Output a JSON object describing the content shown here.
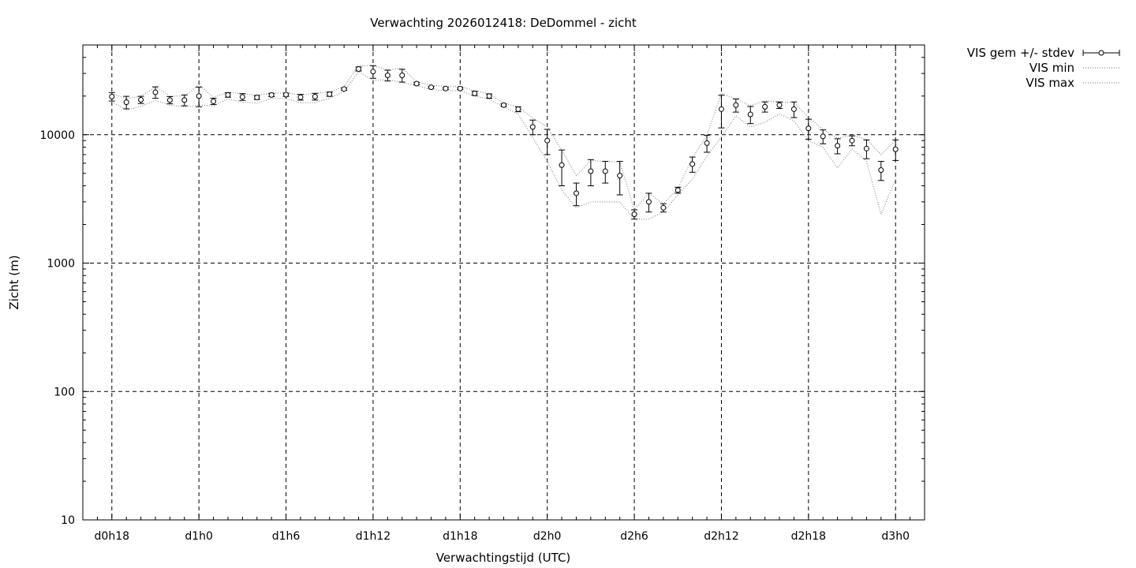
{
  "chart_data": {
    "type": "scatter",
    "title": "Verwachting 2026012418: DeDommel - zicht",
    "xlabel": "Verwachtingstijd (UTC)",
    "ylabel": "Zicht (m)",
    "yscale": "log",
    "ylim": [
      10,
      50000
    ],
    "xlim_hours": [
      16,
      74
    ],
    "grid": true,
    "legend_position": "outside-top-right",
    "x_ticks": [
      {
        "hour": 18,
        "label": "d0h18"
      },
      {
        "hour": 24,
        "label": "d1h0"
      },
      {
        "hour": 30,
        "label": "d1h6"
      },
      {
        "hour": 36,
        "label": "d1h12"
      },
      {
        "hour": 42,
        "label": "d1h18"
      },
      {
        "hour": 48,
        "label": "d2h0"
      },
      {
        "hour": 54,
        "label": "d2h6"
      },
      {
        "hour": 60,
        "label": "d2h12"
      },
      {
        "hour": 66,
        "label": "d2h18"
      },
      {
        "hour": 72,
        "label": "d3h0"
      }
    ],
    "y_ticks": [
      {
        "value": 10,
        "label": "10"
      },
      {
        "value": 100,
        "label": "100"
      },
      {
        "value": 1000,
        "label": "1000"
      },
      {
        "value": 10000,
        "label": "10000"
      }
    ],
    "x_hours": [
      18,
      19,
      20,
      21,
      22,
      23,
      24,
      25,
      26,
      27,
      28,
      29,
      30,
      31,
      32,
      33,
      34,
      35,
      36,
      37,
      38,
      39,
      40,
      41,
      42,
      43,
      44,
      45,
      46,
      47,
      48,
      49,
      50,
      51,
      52,
      53,
      54,
      55,
      56,
      57,
      58,
      59,
      60,
      61,
      62,
      63,
      64,
      65,
      66,
      67,
      68,
      69,
      70,
      71,
      72
    ],
    "series": [
      {
        "name": "VIS gem +/- stdev",
        "style": "errorbars",
        "mean": [
          19800,
          17900,
          18700,
          21400,
          18600,
          18600,
          20000,
          18200,
          20400,
          19700,
          19500,
          20400,
          20500,
          19600,
          19800,
          20700,
          22700,
          32500,
          31000,
          29000,
          29000,
          25000,
          23400,
          22900,
          22900,
          21000,
          20000,
          17000,
          15800,
          11500,
          9000,
          5800,
          3500,
          5200,
          5200,
          4800,
          2400,
          3000,
          2700,
          3700,
          5900,
          8600,
          15800,
          17000,
          14400,
          16500,
          17000,
          15800,
          11200,
          9700,
          8200,
          9000,
          7800,
          5300,
          7700
        ],
        "stdev": [
          1500,
          2000,
          1200,
          2200,
          1200,
          1800,
          3500,
          1000,
          800,
          1200,
          700,
          600,
          600,
          1000,
          1200,
          800,
          500,
          1200,
          3500,
          2800,
          3300,
          600,
          400,
          400,
          400,
          800,
          800,
          400,
          700,
          1500,
          2000,
          1800,
          700,
          1200,
          1000,
          1400,
          200,
          500,
          200,
          200,
          800,
          1300,
          4500,
          2000,
          2200,
          1500,
          1000,
          2200,
          2000,
          1200,
          1100,
          800,
          1300,
          900,
          1400
        ]
      },
      {
        "name": "VIS min",
        "style": "dotted",
        "values": [
          18000,
          15600,
          16600,
          18500,
          17000,
          16500,
          17000,
          16800,
          19000,
          18000,
          17600,
          19200,
          19200,
          17700,
          17800,
          19200,
          21700,
          31000,
          26500,
          26800,
          25500,
          24200,
          22500,
          22000,
          22000,
          20000,
          19000,
          16400,
          14500,
          9500,
          6200,
          3700,
          2700,
          3000,
          3000,
          3000,
          2200,
          2200,
          2500,
          3400,
          4500,
          6800,
          9600,
          14000,
          11500,
          12500,
          14500,
          12800,
          9000,
          8000,
          5500,
          7800,
          6200,
          2400,
          4500
        ]
      },
      {
        "name": "VIS max",
        "style": "dotted",
        "values": [
          21000,
          19000,
          20000,
          23500,
          20000,
          20000,
          24500,
          19500,
          21500,
          20800,
          20300,
          21000,
          21200,
          20400,
          21000,
          21500,
          23600,
          34500,
          34500,
          32000,
          33000,
          25800,
          24300,
          23800,
          23800,
          22000,
          20800,
          17600,
          16500,
          13500,
          11500,
          7600,
          4800,
          6300,
          6200,
          6100,
          2600,
          3500,
          2900,
          3800,
          6600,
          9900,
          21000,
          19000,
          16800,
          18400,
          18000,
          17800,
          13600,
          11000,
          9400,
          9900,
          9200,
          7000,
          9000
        ]
      }
    ]
  }
}
